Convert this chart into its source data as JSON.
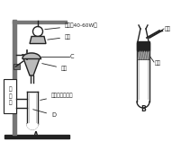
{
  "bg_color": "#ffffff",
  "label_A": "A",
  "label_B": "B",
  "text_lamp": "电灯（40-60W）",
  "text_shade": "灯罩",
  "text_C": "C",
  "text_funnel": "漏斗",
  "text_stand": "铁\n架\n台",
  "text_tube": "试管（或烧杠）",
  "text_D": "D",
  "text_inhale": "吸气",
  "text_gauze": "纱布",
  "dc": "#222222",
  "mg": "#777777",
  "lg": "#bbbbbb"
}
